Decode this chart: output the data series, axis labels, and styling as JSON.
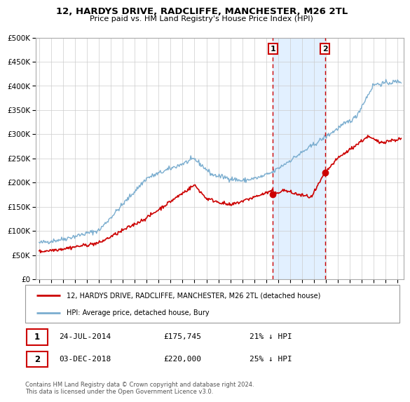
{
  "title": "12, HARDYS DRIVE, RADCLIFFE, MANCHESTER, M26 2TL",
  "subtitle": "Price paid vs. HM Land Registry's House Price Index (HPI)",
  "legend_entry1": "12, HARDYS DRIVE, RADCLIFFE, MANCHESTER, M26 2TL (detached house)",
  "legend_entry2": "HPI: Average price, detached house, Bury",
  "annotation1_date": "24-JUL-2014",
  "annotation1_price": "£175,745",
  "annotation1_hpi": "21% ↓ HPI",
  "annotation1_year": 2014.56,
  "annotation1_value": 175745,
  "annotation2_date": "03-DEC-2018",
  "annotation2_price": "£220,000",
  "annotation2_hpi": "25% ↓ HPI",
  "annotation2_year": 2018.92,
  "annotation2_value": 220000,
  "color_red": "#cc0000",
  "color_blue": "#7aadcf",
  "color_vline": "#cc0000",
  "color_shade": "#ddeeff",
  "footer": "Contains HM Land Registry data © Crown copyright and database right 2024.\nThis data is licensed under the Open Government Licence v3.0.",
  "ylim": [
    0,
    500000
  ],
  "yticks": [
    0,
    50000,
    100000,
    150000,
    200000,
    250000,
    300000,
    350000,
    400000,
    450000,
    500000
  ],
  "xlim_start": 1994.7,
  "xlim_end": 2025.5,
  "xticks": [
    1995,
    1996,
    1997,
    1998,
    1999,
    2000,
    2001,
    2002,
    2003,
    2004,
    2005,
    2006,
    2007,
    2008,
    2009,
    2010,
    2011,
    2012,
    2013,
    2014,
    2015,
    2016,
    2017,
    2018,
    2019,
    2020,
    2021,
    2022,
    2023,
    2024,
    2025
  ]
}
